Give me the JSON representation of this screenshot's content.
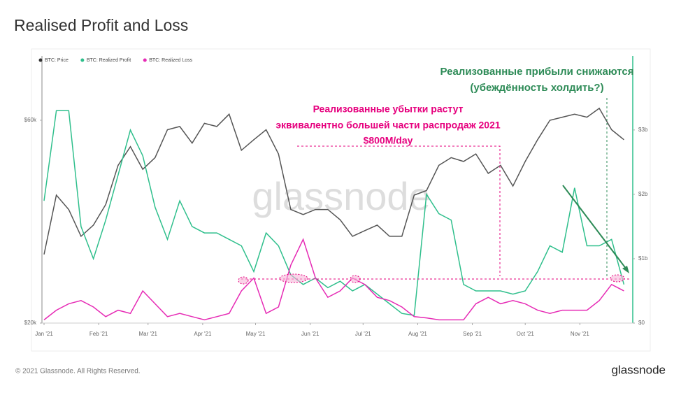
{
  "chart_data": {
    "type": "line",
    "title": "Realised Profit and Loss",
    "footer": "© 2021 Glassnode. All Rights Reserved.",
    "brand": "glassnode",
    "watermark": "glassnode",
    "annotations": [
      {
        "text": "Реализованные прибыли снижаются",
        "color": "#2e8b57"
      },
      {
        "text": "(убеждённость холдить?)",
        "color": "#2e8b57"
      },
      {
        "text": "Реализованные убытки растут",
        "color": "#e6007e"
      },
      {
        "text": "эквивалентно большей части распродаж 2021",
        "color": "#e6007e"
      },
      {
        "text": "$800M/day",
        "color": "#e6007e"
      }
    ],
    "x": [
      1,
      8,
      15,
      22,
      29,
      36,
      43,
      50,
      57,
      64,
      71,
      78,
      85,
      92,
      99,
      106,
      113,
      120,
      127,
      134,
      141,
      148,
      155,
      162,
      169,
      176,
      183,
      190,
      197,
      204,
      211,
      218,
      225,
      232,
      239,
      246,
      253,
      260,
      267,
      274,
      281,
      288,
      295,
      302,
      309,
      316,
      323,
      330
    ],
    "xlim": [
      1,
      335
    ],
    "xticks": [
      {
        "value": 1,
        "label": "Jan '21"
      },
      {
        "value": 32,
        "label": "Feb '21"
      },
      {
        "value": 60,
        "label": "Mar '21"
      },
      {
        "value": 91,
        "label": "Apr '21"
      },
      {
        "value": 121,
        "label": "May '21"
      },
      {
        "value": 152,
        "label": "Jun '21"
      },
      {
        "value": 182,
        "label": "Jul '21"
      },
      {
        "value": 213,
        "label": "Aug '21"
      },
      {
        "value": 244,
        "label": "Sep '21"
      },
      {
        "value": 274,
        "label": "Oct '21"
      },
      {
        "value": 305,
        "label": "Nov '21"
      }
    ],
    "ylim": [
      20000,
      85000
    ],
    "log_scale": true,
    "yticks": [
      {
        "value": 20000,
        "label": "$20k"
      },
      {
        "value": 60000,
        "label": "$60k"
      }
    ],
    "y2lim": [
      0,
      4.15
    ],
    "y2ticks": [
      {
        "value": 0,
        "label": "$0"
      },
      {
        "value": 1,
        "label": "$1b"
      },
      {
        "value": 2,
        "label": "$2b"
      },
      {
        "value": 3,
        "label": "$3b"
      }
    ],
    "series": [
      {
        "name": "BTC: Price",
        "color": "#555555",
        "legend_color": "#333333",
        "values": [
          29000,
          40000,
          37000,
          32000,
          34000,
          38000,
          47000,
          52000,
          46000,
          49000,
          57000,
          58000,
          53000,
          59000,
          58000,
          62000,
          51000,
          54000,
          57000,
          50000,
          37000,
          36000,
          37000,
          37000,
          35000,
          32000,
          33000,
          34000,
          32000,
          32000,
          40000,
          41000,
          47000,
          49000,
          48000,
          50000,
          45000,
          47000,
          42000,
          48000,
          54000,
          60000,
          61000,
          62000,
          61000,
          64000,
          57000,
          54000
        ]
      },
      {
        "name": "BTC: Realized Profit",
        "color": "#2fbf8c",
        "axis": "y2",
        "values": [
          1.9,
          3.3,
          3.3,
          1.5,
          1.0,
          1.6,
          2.3,
          3.0,
          2.6,
          1.8,
          1.3,
          1.9,
          1.5,
          1.4,
          1.4,
          1.3,
          1.2,
          0.8,
          1.4,
          1.2,
          0.75,
          0.6,
          0.7,
          0.55,
          0.65,
          0.5,
          0.6,
          0.45,
          0.3,
          0.15,
          0.12,
          2.0,
          1.7,
          1.6,
          0.6,
          0.5,
          0.5,
          0.5,
          0.45,
          0.5,
          0.8,
          1.2,
          1.1,
          2.1,
          1.2,
          1.2,
          1.3,
          0.6
        ]
      },
      {
        "name": "BTC: Realized Loss",
        "color": "#e62bb5",
        "axis": "y2",
        "values": [
          0.05,
          0.2,
          0.3,
          0.35,
          0.25,
          0.1,
          0.2,
          0.15,
          0.5,
          0.3,
          0.1,
          0.15,
          0.1,
          0.05,
          0.1,
          0.15,
          0.5,
          0.7,
          0.15,
          0.25,
          0.9,
          1.3,
          0.7,
          0.4,
          0.5,
          0.7,
          0.6,
          0.4,
          0.35,
          0.25,
          0.1,
          0.08,
          0.05,
          0.05,
          0.05,
          0.3,
          0.4,
          0.3,
          0.35,
          0.3,
          0.2,
          0.15,
          0.2,
          0.2,
          0.2,
          0.35,
          0.6,
          0.5
        ]
      }
    ]
  }
}
